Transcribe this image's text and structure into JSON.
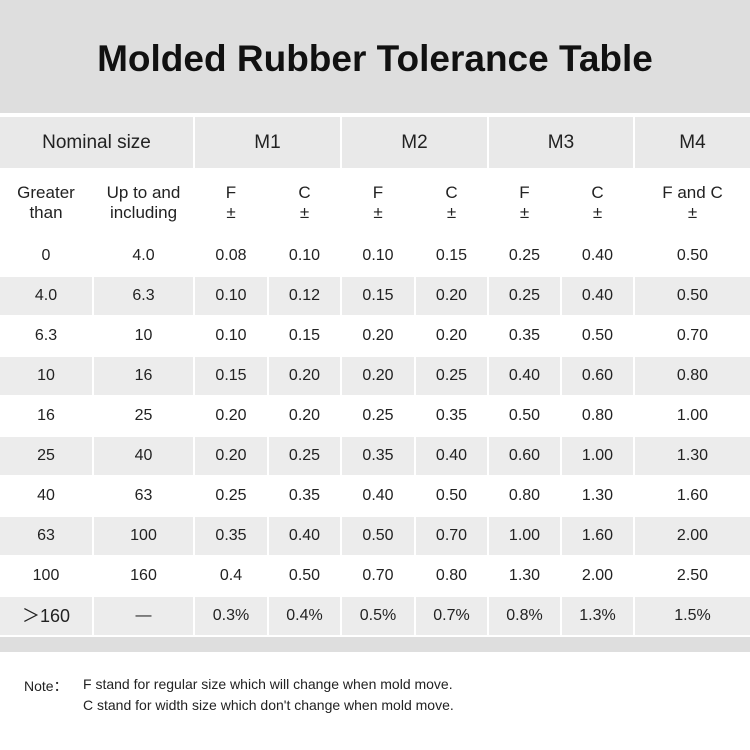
{
  "title": "Molded Rubber Tolerance Table",
  "table": {
    "header": [
      "Nominal size",
      "M1",
      "M2",
      "M3",
      "M4"
    ],
    "subheader": [
      [
        "Greater",
        "than"
      ],
      [
        "Up to and",
        "including"
      ],
      [
        "F",
        "±"
      ],
      [
        "C",
        "±"
      ],
      [
        "F",
        "±"
      ],
      [
        "C",
        "±"
      ],
      [
        "F",
        "±"
      ],
      [
        "C",
        "±"
      ],
      [
        "F and C",
        "±"
      ]
    ],
    "rows": [
      [
        "0",
        "4.0",
        "0.08",
        "0.10",
        "0.10",
        "0.15",
        "0.25",
        "0.40",
        "0.50"
      ],
      [
        "4.0",
        "6.3",
        "0.10",
        "0.12",
        "0.15",
        "0.20",
        "0.25",
        "0.40",
        "0.50"
      ],
      [
        "6.3",
        "10",
        "0.10",
        "0.15",
        "0.20",
        "0.20",
        "0.35",
        "0.50",
        "0.70"
      ],
      [
        "10",
        "16",
        "0.15",
        "0.20",
        "0.20",
        "0.25",
        "0.40",
        "0.60",
        "0.80"
      ],
      [
        "16",
        "25",
        "0.20",
        "0.20",
        "0.25",
        "0.35",
        "0.50",
        "0.80",
        "1.00"
      ],
      [
        "25",
        "40",
        "0.20",
        "0.25",
        "0.35",
        "0.40",
        "0.60",
        "1.00",
        "1.30"
      ],
      [
        "40",
        "63",
        "0.25",
        "0.35",
        "0.40",
        "0.50",
        "0.80",
        "1.30",
        "1.60"
      ],
      [
        "63",
        "100",
        "0.35",
        "0.40",
        "0.50",
        "0.70",
        "1.00",
        "1.60",
        "2.00"
      ],
      [
        "100",
        "160",
        "0.4",
        "0.50",
        "0.70",
        "0.80",
        "1.30",
        "2.00",
        "2.50"
      ],
      [
        "＞160",
        "—",
        "0.3%",
        "0.4%",
        "0.5%",
        "0.7%",
        "0.8%",
        "1.3%",
        "1.5%"
      ]
    ]
  },
  "note": {
    "label": "Note：",
    "lines": [
      "F stand for regular size which will change when mold move.",
      "C stand for width size which don't change when mold move."
    ]
  }
}
